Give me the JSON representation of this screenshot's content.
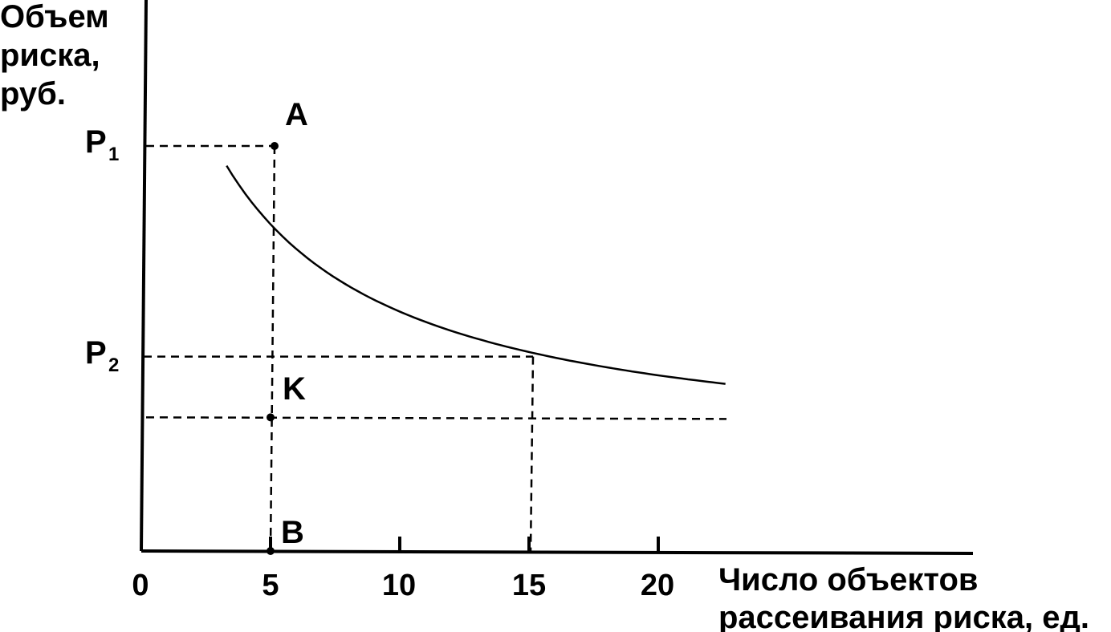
{
  "chart_data": {
    "type": "line",
    "ylabel_lines": [
      "Объем",
      "риска,",
      "руб."
    ],
    "xlabel_lines": [
      "Число объектов",
      "рассеивания риска, ед."
    ],
    "xlim": [
      0,
      32
    ],
    "ylim": [
      0,
      10
    ],
    "x_ticks": [
      "0",
      "5",
      "10",
      "15",
      "20"
    ],
    "x_tick_values": [
      0,
      5,
      10,
      15,
      20
    ],
    "curve": {
      "x_range": [
        3.3,
        22.6
      ],
      "points": [
        {
          "x": 3.3,
          "y": 10.4
        },
        {
          "x": 5.1,
          "y": 8.2
        },
        {
          "x": 10,
          "y": 6.6
        },
        {
          "x": 15,
          "y": 4.8
        },
        {
          "x": 20,
          "y": 3.9
        },
        {
          "x": 22.6,
          "y": 3.8
        }
      ]
    },
    "reference_lines": {
      "P1": {
        "label": "P",
        "sub": "1",
        "y": 10
      },
      "P2": {
        "label": "P",
        "sub": "2",
        "y": 4.8
      },
      "K_level": {
        "y": 3.3
      },
      "v5": {
        "x": 5
      },
      "v15": {
        "x": 15
      }
    },
    "points": [
      {
        "name": "A",
        "x": 5,
        "y": 10
      },
      {
        "name": "K",
        "x": 5,
        "y": 3.3
      },
      {
        "name": "B",
        "x": 5,
        "y": 0
      }
    ]
  }
}
